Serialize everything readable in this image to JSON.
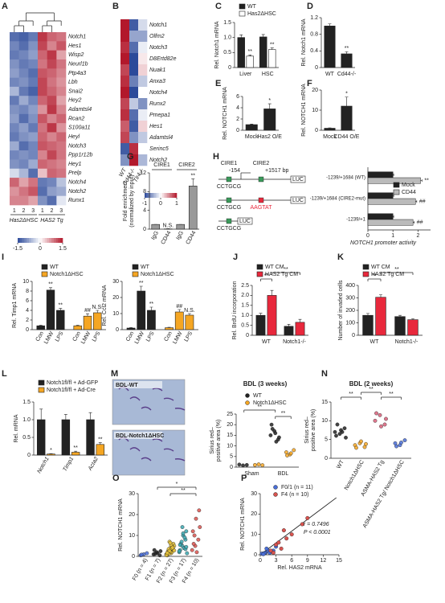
{
  "chart_data": [
    {
      "panel": "A",
      "type": "heatmap",
      "rows": [
        "Notch1",
        "Hes1",
        "Wisp2",
        "Neurl1b",
        "Ptp4a3",
        "Lbh",
        "Snai2",
        "Hey2",
        "Adamtsl4",
        "Rcan2",
        "S100a11",
        "Heyl",
        "Notch3",
        "Ppp1r12b",
        "Hey1",
        "Prelp",
        "Notch4",
        "Notch2",
        "Runx1"
      ],
      "columns": [
        "1",
        "2",
        "3",
        "1",
        "2",
        "3"
      ],
      "groups": [
        "Has2ΔHSC",
        "HAS2 Tg"
      ],
      "values": [
        [
          -1.2,
          -1.3,
          -1.1,
          1.3,
          1.0,
          0.9
        ],
        [
          -1.0,
          -1.2,
          -0.9,
          1.2,
          0.8,
          1.1
        ],
        [
          -1.1,
          -1.0,
          -0.8,
          1.0,
          1.3,
          0.6
        ],
        [
          -0.9,
          -1.1,
          -1.0,
          0.9,
          1.2,
          0.9
        ],
        [
          -0.8,
          -1.0,
          -1.2,
          1.1,
          1.0,
          0.8
        ],
        [
          -1.0,
          -0.9,
          -1.1,
          1.2,
          0.9,
          0.7
        ],
        [
          -0.6,
          -1.1,
          -1.3,
          1.2,
          1.0,
          0.8
        ],
        [
          -1.1,
          -0.7,
          -1.0,
          1.0,
          1.2,
          0.6
        ],
        [
          -0.9,
          -1.0,
          -0.8,
          0.7,
          1.3,
          0.8
        ],
        [
          -0.8,
          -1.2,
          -0.9,
          1.1,
          0.8,
          1.0
        ],
        [
          -1.0,
          -0.8,
          -1.1,
          0.9,
          1.3,
          0.7
        ],
        [
          -1.1,
          -0.9,
          -0.8,
          1.0,
          0.8,
          1.0
        ],
        [
          -0.7,
          -1.2,
          -1.0,
          1.1,
          1.0,
          0.9
        ],
        [
          -1.0,
          -0.9,
          -1.0,
          0.8,
          1.2,
          0.9
        ],
        [
          -0.9,
          -1.0,
          -0.7,
          1.0,
          0.9,
          0.8
        ],
        [
          -0.3,
          -0.6,
          -1.2,
          0.4,
          1.0,
          0.9
        ],
        [
          1.0,
          0.6,
          0.9,
          -1.1,
          -1.0,
          -0.5
        ],
        [
          0.7,
          0.9,
          1.1,
          -1.2,
          -0.8,
          -0.7
        ],
        [
          0.8,
          0.8,
          0.6,
          -0.9,
          -1.2,
          -0.2
        ]
      ],
      "clim": [
        -1.5,
        1.5
      ],
      "cticks": [
        -1.5,
        0,
        1.5
      ]
    },
    {
      "panel": "B",
      "type": "heatmap",
      "rows": [
        "Notch1",
        "Olfm2",
        "Notch3",
        "D8Ertd82e",
        "Nuak1",
        "Anxa3",
        "Notch4",
        "Runx2",
        "Pmepa1",
        "Hes1",
        "Adamtsl4",
        "Serinc5",
        "Notch2"
      ],
      "columns": [
        "WT",
        "Cd44-/-",
        "Tlr4-/-"
      ],
      "values": [
        [
          1.0,
          -0.9,
          -0.2
        ],
        [
          1.0,
          -0.5,
          -0.5
        ],
        [
          0.9,
          -0.8,
          -0.1
        ],
        [
          1.0,
          -1.0,
          0.1
        ],
        [
          0.8,
          -1.0,
          0.2
        ],
        [
          0.9,
          -0.7,
          -0.3
        ],
        [
          1.0,
          -1.0,
          0.0
        ],
        [
          0.8,
          -0.3,
          -0.6
        ],
        [
          0.9,
          -0.8,
          -0.1
        ],
        [
          0.7,
          -0.9,
          0.2
        ],
        [
          0.8,
          -0.6,
          -0.3
        ],
        [
          -0.9,
          0.9,
          0.0
        ],
        [
          -0.6,
          1.0,
          -0.4
        ]
      ],
      "clim": [
        -1,
        1
      ],
      "cticks": [
        -1,
        0,
        1
      ]
    },
    {
      "panel": "C",
      "type": "bar",
      "ylabel": "Rel. Notch1 mRNA",
      "categories": [
        "Liver",
        "HSC"
      ],
      "series": [
        {
          "name": "WT",
          "color": "#222222",
          "values": [
            1.0,
            1.02
          ],
          "errors": [
            0.09,
            0.08
          ],
          "sig": [
            null,
            null
          ]
        },
        {
          "name": "Has2ΔHSC",
          "color": "#ffffff",
          "values": [
            0.38,
            0.6
          ],
          "errors": [
            0.04,
            0.05
          ],
          "sig": [
            "**",
            "**"
          ]
        }
      ],
      "ylim": [
        0,
        1.5
      ],
      "yticks": [
        0,
        0.5,
        {
          "value": 1,
          "label": "1.0"
        },
        1.5
      ]
    },
    {
      "panel": "D",
      "type": "bar",
      "ylabel": "Rel. Notch1 mRNA",
      "categories": [
        "WT",
        "Cd44-/-"
      ],
      "series": [
        {
          "color": "#222222",
          "values": [
            1.0,
            0.33
          ],
          "errors": [
            0.05,
            0.05
          ],
          "sig": [
            null,
            "**"
          ]
        }
      ],
      "ylim": [
        0,
        1.2
      ],
      "yticks": [
        0,
        0.4,
        0.8,
        1.2
      ]
    },
    {
      "panel": "E",
      "type": "bar",
      "ylabel": "Rel. NOTCH1 mRNA",
      "categories": [
        "Mock",
        "Has2 O/E"
      ],
      "series": [
        {
          "color": "#222222",
          "values": [
            1.0,
            3.8
          ],
          "errors": [
            0.1,
            0.9
          ],
          "sig": [
            null,
            "*"
          ]
        }
      ],
      "ylim": [
        0,
        6
      ],
      "yticks": [
        0,
        2,
        4,
        6
      ]
    },
    {
      "panel": "F",
      "type": "bar",
      "ylabel": "Rel. NOTCH1 mRNA",
      "categories": [
        "Mock",
        "CD44 O/E"
      ],
      "series": [
        {
          "color": "#222222",
          "values": [
            1.0,
            12
          ],
          "errors": [
            0.2,
            4.5
          ],
          "sig": [
            null,
            "*"
          ]
        }
      ],
      "ylim": [
        0,
        20
      ],
      "yticks": [
        0,
        10,
        20
      ]
    },
    {
      "panel": "G",
      "type": "bar",
      "ylabel": [
        "Fold enrichment",
        "(normalized by input)"
      ],
      "categories": [
        "IgG",
        "CD44",
        "IgG",
        "CD44"
      ],
      "groups": [
        "CIRE1",
        "CIRE2"
      ],
      "series": [
        {
          "color": "#999999",
          "values": [
            1.0,
            0.05,
            1.0,
            9.2
          ],
          "errors": [
            0,
            0.05,
            0,
            1.5
          ],
          "sig": [
            null,
            "N.S.",
            null,
            "**"
          ]
        }
      ],
      "ylim": [
        0,
        12
      ],
      "yticks": [
        0,
        4,
        8,
        12
      ]
    },
    {
      "panel": "H",
      "type": "hbar",
      "xlabel": "NOTCH1 promoter activity",
      "categories": [
        "-1239/+1684 (WT)",
        "-1239/+1684 (CIRE2-mut)",
        "-1239/+1"
      ],
      "diagram_labels": [
        "CIRE1",
        "CIRE2",
        "-154",
        "+1517 bp",
        "CCTGCG",
        "LUC",
        "CCTGCG",
        "AAGTAT",
        "LUC",
        "CCTGCG",
        "LUC"
      ],
      "series": [
        {
          "name": "Mock",
          "color": "#222222",
          "values": [
            1.0,
            1.0,
            1.0
          ],
          "errors": [
            0.03,
            0.03,
            0.03
          ],
          "sig": [
            null,
            null,
            null
          ]
        },
        {
          "name": "CD44",
          "color": "#bbbbbb",
          "values": [
            2.1,
            1.9,
            1.8
          ],
          "errors": [
            0.06,
            0.05,
            0.05
          ],
          "sig": [
            "**",
            "##",
            "##"
          ]
        }
      ],
      "xlim": [
        0,
        2.5
      ],
      "xticks": [
        0,
        1,
        2
      ]
    },
    {
      "panel": "I",
      "type": "bar",
      "ylabel": "Rel. Timp1 mRNA",
      "categories": [
        "Con",
        "LMW",
        "LPS"
      ],
      "series": [
        {
          "name": "WT",
          "color": "#222222",
          "values": [
            0.8,
            8.2,
            4.0
          ],
          "errors": [
            0.1,
            0.5,
            0.4
          ],
          "sig": [
            null,
            "**",
            "**"
          ]
        },
        {
          "name": "Notch1ΔHSC",
          "color": "#f5a623",
          "values": [
            0.8,
            2.8,
            3.5
          ],
          "errors": [
            0.1,
            0.5,
            0.5
          ],
          "sig": [
            null,
            "##",
            "N.S."
          ]
        }
      ],
      "ylim": [
        0,
        10
      ],
      "yticks": [
        0,
        2,
        4,
        6,
        8,
        10
      ]
    },
    {
      "type": "bar",
      "ylabel": "Rel. Ccl2 mRNA",
      "categories": [
        "Con",
        "LMW",
        "LPS"
      ],
      "series": [
        {
          "name": "WT",
          "color": "#222222",
          "values": [
            1.0,
            24,
            12
          ],
          "errors": [
            0.3,
            3,
            2
          ],
          "sig": [
            null,
            "**",
            "**"
          ]
        },
        {
          "name": "Notch1ΔHSC",
          "color": "#f5a623",
          "values": [
            1.2,
            11,
            9
          ],
          "errors": [
            0.3,
            1.5,
            1
          ],
          "sig": [
            null,
            "##",
            "N.S."
          ]
        }
      ],
      "ylim": [
        0,
        30
      ],
      "yticks": [
        0,
        10,
        20,
        30
      ]
    },
    {
      "panel": "J",
      "type": "bar",
      "ylabel": "Rel. BrdU incorporation",
      "categories": [
        "WT",
        "Notch1-/-"
      ],
      "brackets": [
        "**",
        "**"
      ],
      "series": [
        {
          "name": "WT CM",
          "color": "#222222",
          "values": [
            1.0,
            0.45
          ],
          "errors": [
            0.1,
            0.1
          ]
        },
        {
          "name": "HAS2 Tg CM",
          "color": "#e8283c",
          "values": [
            2.0,
            0.65
          ],
          "errors": [
            0.25,
            0.15
          ]
        }
      ],
      "ylim": [
        0,
        2.5
      ],
      "yticks": [
        0,
        0.5,
        {
          "value": 1,
          "label": "1.0"
        },
        1.5,
        {
          "value": 2,
          "label": "2.0"
        },
        2.5
      ]
    },
    {
      "panel": "K",
      "type": "bar",
      "ylabel": "Number of invaded cells",
      "categories": [
        "WT",
        "Notch1-/-"
      ],
      "brackets": [
        "**",
        "**"
      ],
      "series": [
        {
          "name": "WT CM",
          "color": "#222222",
          "values": [
            160,
            150
          ],
          "errors": [
            15,
            10
          ]
        },
        {
          "name": "HAS2 Tg CM",
          "color": "#e8283c",
          "values": [
            305,
            125
          ],
          "errors": [
            20,
            8
          ]
        }
      ],
      "ylim": [
        0,
        400
      ],
      "yticks": [
        0,
        100,
        200,
        300,
        400
      ]
    },
    {
      "panel": "L",
      "type": "bar",
      "ylabel": "Rel. mRNA",
      "categories": [
        "Notch1",
        "Timp1",
        "Acta2"
      ],
      "series": [
        {
          "name": "Notch1fl/fl + Ad-GFP",
          "color": "#222222",
          "values": [
            1.0,
            1.0,
            1.0
          ],
          "errors": [
            0.3,
            0.15,
            0.2
          ],
          "sig": [
            null,
            null,
            null
          ]
        },
        {
          "name": "Notch1fl/fl + Ad-Cre",
          "color": "#f5a623",
          "values": [
            0.03,
            0.08,
            0.3
          ],
          "errors": [
            0.01,
            0.03,
            0.05
          ],
          "sig": [
            "*",
            "**",
            "**"
          ]
        }
      ],
      "ylim": [
        0,
        1.5
      ],
      "yticks": [
        0,
        0.5,
        {
          "value": 1,
          "label": "1.0"
        },
        1.5
      ]
    },
    {
      "panel": "M",
      "type": "dot",
      "title": "BDL (3 weeks)",
      "images": [
        "BDL-WT",
        "BDL-Notch1ΔHSC"
      ],
      "ylabel": [
        "Sirius red–",
        "positive area (%)"
      ],
      "categories": [
        "Sham",
        "BDL"
      ],
      "brackets": [
        "**",
        "**"
      ],
      "series": [
        {
          "name": "WT",
          "color": "#222222",
          "values": [
            [
              1.2,
              0.8,
              1.0
            ],
            [
              15,
              17,
              13,
              20,
              16,
              14,
              18,
              12
            ]
          ]
        },
        {
          "name": "Notch1ΔHSC",
          "color": "#f5a623",
          "values": [
            [
              1.0,
              1.3,
              0.9
            ],
            [
              7,
              6,
              8,
              5.5,
              6.5
            ]
          ]
        }
      ],
      "ylim": [
        0,
        25
      ],
      "yticks": [
        0,
        5,
        10,
        15,
        20,
        25
      ]
    },
    {
      "panel": "N",
      "type": "dot",
      "title": "BDL (2 weeks)",
      "ylabel": [
        "Sirius red–",
        "positive area (%)"
      ],
      "categories": [
        "WT",
        "Notch1ΔHSC",
        "ASMA-HAS2 Tg",
        "ASMA-HAS2 Tg/ Notch1ΔHSC"
      ],
      "colors": [
        "#222222",
        "#f5a623",
        "#d9607a",
        "#4a6fd8"
      ],
      "brackets": [
        "**",
        "**",
        "**"
      ],
      "series": [
        {
          "values": [
            [
              7,
              6.5,
              8,
              6,
              7.5,
              5.5,
              9,
              7
            ],
            [
              3.5,
              4,
              3,
              2.8,
              4.5,
              3.8
            ],
            [
              10,
              11.5,
              9,
              12,
              8.5,
              10.5
            ],
            [
              4,
              3.5,
              4.8,
              3.2,
              4.2
            ]
          ]
        }
      ],
      "ylim": [
        0,
        15
      ],
      "yticks": [
        0,
        5,
        10,
        15
      ]
    },
    {
      "panel": "O",
      "type": "dot",
      "ylabel": "Rel. NOTCH1 mRNA",
      "categories": [
        "F0 (n = 4)",
        "F1 (n = 7)",
        "F2 (n = 27)",
        "F3 (n = 17)",
        "F4 (n = 10)"
      ],
      "colors": [
        "#4a6fd8",
        "#222222",
        "#e8c33a",
        "#3aa7b0",
        "#d9534f"
      ],
      "brackets": [
        "*",
        "**"
      ],
      "series": [
        {
          "values": [
            [
              0.5,
              1,
              1.5,
              0.8
            ],
            [
              1,
              2,
              0.5,
              3,
              1.5,
              2.5,
              1.2
            ],
            [
              1,
              2,
              3,
              0.5,
              4,
              6,
              2.5,
              1.5,
              5,
              3.5,
              2,
              1,
              7,
              4.5,
              0.8,
              2.2,
              3.2,
              1.8,
              5.5,
              2.8,
              1.2,
              3.8,
              0.6,
              2.6,
              4.2,
              1.6,
              6.5
            ],
            [
              2,
              5,
              8,
              3,
              10,
              12,
              6,
              4,
              1.5,
              7,
              9,
              2.5,
              14,
              3.5,
              5.5,
              11,
              4.5
            ],
            [
              3,
              5,
              8,
              12,
              18,
              22,
              6,
              2,
              14,
              10
            ]
          ]
        }
      ],
      "ylim": [
        0,
        30
      ],
      "yticks": [
        0,
        10,
        20,
        30
      ]
    },
    {
      "panel": "P",
      "type": "scatter",
      "ylabel": "Rel. NOTCH1 mRNA",
      "xlabel": "Rel. HAS2 mRNA",
      "annotations": [
        "r = 0.7496",
        "P < 0.0001"
      ],
      "series": [
        {
          "name": "F0/1 (n = 11)",
          "color": "#4a6fd8",
          "x": [
            0.5,
            1,
            1.5,
            2,
            0.8,
            1.2,
            2.5,
            0.3,
            1.8,
            3,
            0.6
          ],
          "values": [
            0.5,
            1,
            2,
            1.5,
            0.8,
            3,
            2,
            0.5,
            1,
            4,
            0.3
          ]
        },
        {
          "name": "F4 (n = 10)",
          "color": "#d9534f",
          "x": [
            2,
            3,
            4,
            5,
            6,
            3.5,
            8,
            9,
            2.5,
            4.5
          ],
          "values": [
            2,
            5,
            3,
            8,
            10,
            6,
            15,
            18,
            1,
            12
          ]
        }
      ],
      "trendline": {
        "color": "#222222",
        "x": [
          0,
          14.5
        ],
        "values": [
          0,
          28
        ]
      },
      "xlim": [
        0,
        15
      ],
      "xticks": [
        0,
        3,
        6,
        9,
        12,
        15
      ],
      "ylim": [
        0,
        30
      ],
      "yticks": [
        0,
        10,
        20,
        30
      ]
    }
  ]
}
